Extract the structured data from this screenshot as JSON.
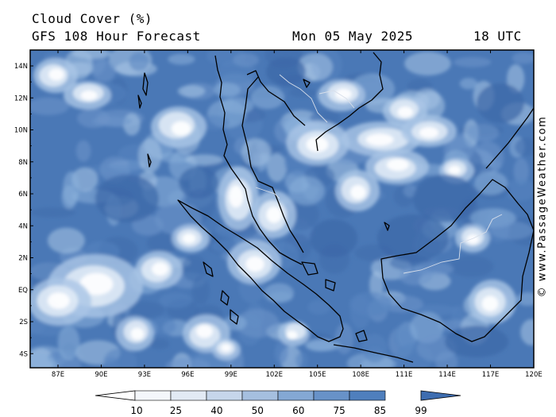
{
  "header": {
    "title": "Cloud Cover (%)",
    "subtitle": "GFS 108 Hour Forecast",
    "datetime": "Mon 05 May 2025",
    "utc": "18 UTC"
  },
  "map": {
    "lat_labels": [
      "14N",
      "12N",
      "10N",
      "8N",
      "6N",
      "4N",
      "2N",
      "EQ",
      "2S",
      "4S"
    ],
    "lon_labels": [
      "87E",
      "90E",
      "93E",
      "96E",
      "99E",
      "102E",
      "105E",
      "108E",
      "111E",
      "114E",
      "117E",
      "120E"
    ],
    "colors": {
      "land_outline": "#000000",
      "border": "#d8dfea",
      "frame": "#000000"
    }
  },
  "legend": {
    "ticks": [
      "10",
      "25",
      "40",
      "50",
      "60",
      "75",
      "85",
      "99"
    ],
    "colors": [
      "#ffffff",
      "#f4f7fb",
      "#e2eaf4",
      "#c6d6eb",
      "#a5bfdf",
      "#84a8d4",
      "#6892c8",
      "#4f7fbd",
      "#3e6db0"
    ]
  },
  "credit": "© www.PassageWeather.com"
}
